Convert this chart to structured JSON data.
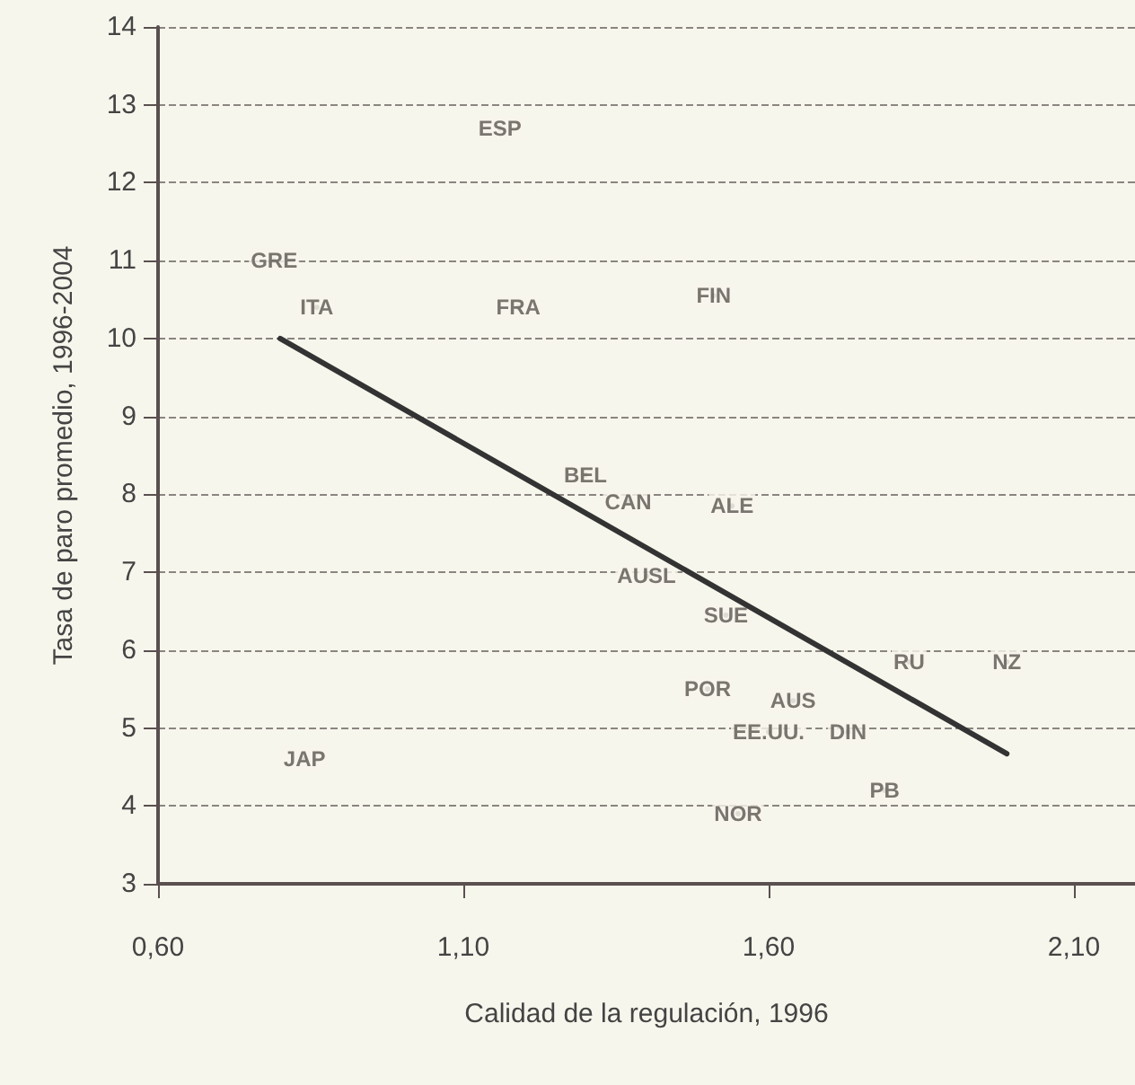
{
  "chart_data": {
    "type": "scatter",
    "xlabel": "Calidad de la regulación, 1996",
    "ylabel": "Tasa de paro promedio, 1996-2004",
    "xlim": [
      0.6,
      2.2
    ],
    "xticks": [
      {
        "value": 0.6,
        "label": "0,60"
      },
      {
        "value": 1.1,
        "label": "1,10"
      },
      {
        "value": 1.6,
        "label": "1,60"
      },
      {
        "value": 2.1,
        "label": "2,10"
      }
    ],
    "ylim": [
      3,
      14
    ],
    "yticks": [
      3,
      4,
      5,
      6,
      7,
      8,
      9,
      10,
      11,
      12,
      13,
      14
    ],
    "grid": "y",
    "series": [
      {
        "color": "#5a5550",
        "marker": "none",
        "x": [
          1.16,
          0.79,
          0.86,
          1.19,
          1.51,
          1.3,
          1.37,
          1.54,
          1.4,
          1.53,
          1.83,
          1.99,
          1.5,
          1.64,
          1.6,
          1.73,
          1.79,
          1.55,
          0.84
        ],
        "values": [
          12.7,
          11.0,
          10.4,
          10.4,
          10.55,
          8.25,
          7.9,
          7.85,
          6.95,
          6.45,
          5.85,
          5.85,
          5.5,
          5.35,
          4.95,
          4.95,
          4.2,
          3.9,
          4.6
        ],
        "value_labels": [
          "ESP",
          "GRE",
          "ITA",
          "FRA",
          "FIN",
          "BEL",
          "CAN",
          "ALE",
          "AUSL",
          "SUE",
          "RU",
          "NZ",
          "POR",
          "AUS",
          "EE.UU.",
          "DIN",
          "PB",
          "NOR",
          "JAP"
        ]
      },
      {
        "type": "line",
        "color": "#333333",
        "line_style": "solid",
        "marker": "none",
        "x": [
          0.8,
          1.99
        ],
        "values": [
          10.0,
          4.67
        ]
      }
    ]
  }
}
